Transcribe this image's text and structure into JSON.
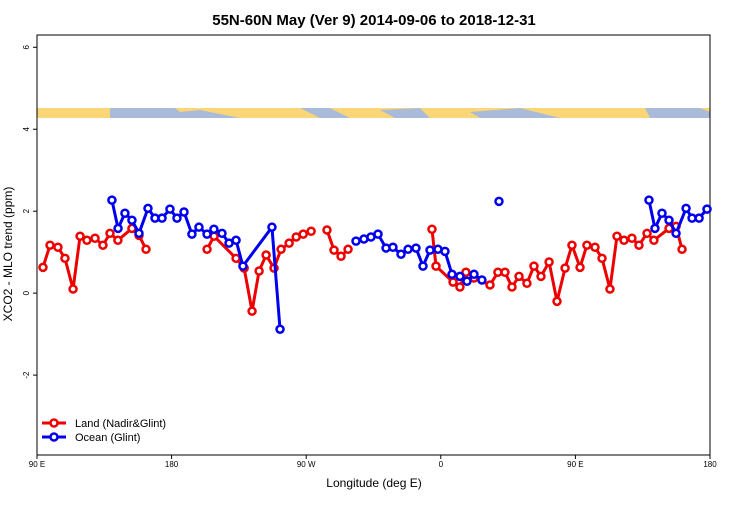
{
  "chart_data": {
    "type": "line",
    "title": "55N-60N May (Ver 9)   2014-09-06 to 2018-12-31",
    "x_label": "Longitude (deg E)",
    "y_label": "XCO2 - MLO trend (ppm)",
    "xlim": [
      90,
      540
    ],
    "ylim": [
      -3.95,
      6.3
    ],
    "xticks": [
      {
        "value": 90,
        "label": "90 E"
      },
      180,
      {
        "value": 270,
        "label": "90 W"
      },
      {
        "value": 360,
        "label": "0"
      },
      {
        "value": 450,
        "label": "90 E"
      },
      {
        "value": 540,
        "label": "180"
      }
    ],
    "yticks": [
      -2,
      0,
      2,
      4,
      6
    ],
    "legend": "bottom-left",
    "series": [
      {
        "name": "Land (Nadir&Glint)",
        "color": "#ee0000",
        "x": [
          94.0,
          98.7,
          104.0,
          108.7,
          114.1,
          118.8,
          123.4,
          128.8,
          134.1,
          138.8,
          144.1,
          153.5,
          158.2,
          162.9,
          null,
          203.7,
          208.4,
          223.1,
          228.5,
          233.8,
          238.5,
          243.2,
          248.5,
          253.2,
          258.6,
          263.3,
          268.0,
          273.3,
          null,
          283.9,
          288.6,
          293.3,
          298.0,
          null,
          354.1,
          356.8,
          368.2,
          372.8,
          376.8,
          382.2,
          392.9,
          398.2,
          402.9,
          407.6,
          412.3,
          417.6,
          422.3,
          427.0,
          432.4,
          437.7,
          443.1,
          447.7,
          453.1,
          457.7,
          463.1,
          467.8,
          473.1,
          477.8,
          482.5,
          487.8,
          492.5,
          497.9,
          502.5,
          512.6,
          517.3,
          521.3
        ],
        "values": [
          0.63,
          1.17,
          1.12,
          0.85,
          0.1,
          1.39,
          1.29,
          1.34,
          1.17,
          1.46,
          1.29,
          1.58,
          1.41,
          1.07,
          null,
          1.07,
          1.39,
          0.85,
          0.61,
          -0.44,
          0.54,
          0.93,
          0.61,
          1.07,
          1.22,
          1.37,
          1.44,
          1.51,
          null,
          1.54,
          1.05,
          0.9,
          1.07,
          null,
          1.56,
          0.66,
          0.27,
          0.15,
          0.51,
          0.37,
          0.2,
          0.51,
          0.51,
          0.15,
          0.41,
          0.24,
          0.66,
          0.41,
          0.76,
          -0.2,
          0.61,
          1.17,
          0.63,
          1.17,
          1.12,
          0.85,
          0.1,
          1.39,
          1.29,
          1.34,
          1.17,
          1.46,
          1.29,
          1.58,
          1.63,
          1.07
        ]
      },
      {
        "name": "Ocean (Glint)",
        "color": "#0000ee",
        "x": [
          140.1,
          144.2,
          148.8,
          153.5,
          158.2,
          164.2,
          168.9,
          173.6,
          178.9,
          183.6,
          188.3,
          193.6,
          198.3,
          203.7,
          208.3,
          213.7,
          218.4,
          223.1,
          227.7,
          247.1,
          252.5,
          null,
          303.3,
          308.6,
          313.3,
          318.0,
          323.4,
          328.0,
          333.4,
          338.1,
          343.4,
          348.1,
          352.8,
          358.1,
          362.8,
          367.5,
          372.8,
          377.5,
          382.2,
          387.5,
          null,
          398.9,
          null,
          499.2,
          503.2,
          507.9,
          512.6,
          517.3,
          524.0,
          528.0,
          532.7,
          538.0
        ],
        "values": [
          2.27,
          1.58,
          1.95,
          1.78,
          1.46,
          2.07,
          1.83,
          1.83,
          2.05,
          1.83,
          1.98,
          1.44,
          1.61,
          1.44,
          1.56,
          1.46,
          1.22,
          1.29,
          0.66,
          1.61,
          -0.88,
          null,
          1.27,
          1.32,
          1.37,
          1.44,
          1.1,
          1.12,
          0.95,
          1.07,
          1.1,
          0.66,
          1.05,
          1.07,
          1.02,
          0.46,
          0.41,
          0.29,
          0.46,
          0.32,
          null,
          2.24,
          null,
          2.27,
          1.58,
          1.95,
          1.78,
          1.46,
          2.07,
          1.83,
          1.83,
          2.05
        ]
      }
    ]
  }
}
